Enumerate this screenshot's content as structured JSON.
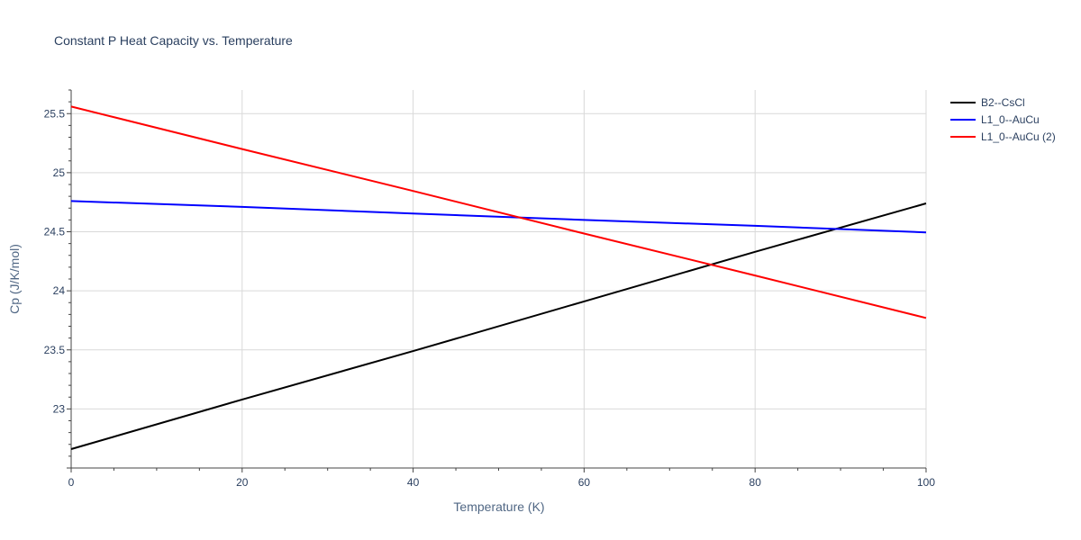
{
  "chart_data": {
    "type": "line",
    "title": "Constant P Heat Capacity vs. Temperature",
    "xlabel": "Temperature (K)",
    "ylabel": "Cp (J/K/mol)",
    "xlim": [
      0,
      100
    ],
    "ylim": [
      22.5,
      25.7
    ],
    "x_ticks": [
      0,
      20,
      40,
      60,
      80,
      100
    ],
    "x_tick_labels": [
      "0",
      "20",
      "40",
      "60",
      "80",
      "100"
    ],
    "y_ticks": [
      23,
      23.5,
      24,
      24.5,
      25,
      25.5
    ],
    "y_tick_labels": [
      "23",
      "23.5",
      "24",
      "24.5",
      "25",
      "25.5"
    ],
    "grid": true,
    "legend_position": "top-right",
    "series": [
      {
        "name": "B2--CsCl",
        "color": "#000000",
        "x": [
          0,
          20,
          40,
          60,
          80,
          100
        ],
        "values": [
          22.66,
          23.08,
          23.49,
          23.91,
          24.33,
          24.74
        ]
      },
      {
        "name": "L1_0--AuCu",
        "color": "#0000ff",
        "x": [
          0,
          20,
          40,
          60,
          80,
          100
        ],
        "values": [
          24.76,
          24.71,
          24.655,
          24.6,
          24.55,
          24.495
        ]
      },
      {
        "name": "L1_0--AuCu (2)",
        "color": "#ff0000",
        "x": [
          0,
          20,
          40,
          60,
          80,
          100
        ],
        "values": [
          25.56,
          25.2,
          24.845,
          24.485,
          24.13,
          23.77
        ]
      }
    ]
  }
}
